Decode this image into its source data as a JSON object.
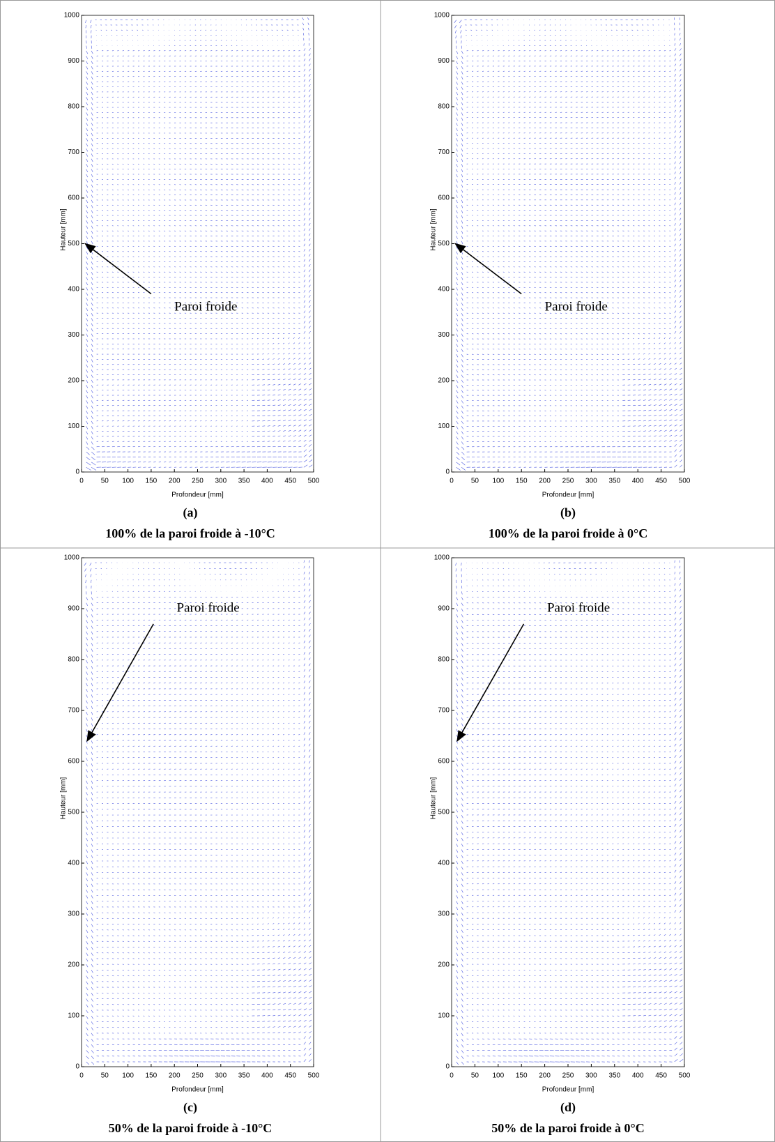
{
  "chart_data": [
    {
      "type": "quiver",
      "label": "(a)",
      "caption": "100% de la paroi froide à -10°C",
      "annotation": "Paroi froide",
      "xlabel": "Profondeur [mm]",
      "ylabel": "Hauteur [mm]",
      "xlim": [
        0,
        500
      ],
      "ylim": [
        0,
        1000
      ],
      "xticks": [
        0,
        50,
        100,
        150,
        200,
        250,
        300,
        350,
        400,
        450,
        500
      ],
      "yticks": [
        0,
        100,
        200,
        300,
        400,
        500,
        600,
        700,
        800,
        900,
        1000
      ],
      "color": "#1f2fd8"
    },
    {
      "type": "quiver",
      "label": "(b)",
      "caption": "100% de la paroi froide à 0°C",
      "annotation": "Paroi froide",
      "xlabel": "Profondeur [mm]",
      "ylabel": "Hauteur [mm]",
      "xlim": [
        0,
        500
      ],
      "ylim": [
        0,
        1000
      ],
      "xticks": [
        0,
        50,
        100,
        150,
        200,
        250,
        300,
        350,
        400,
        450,
        500
      ],
      "yticks": [
        0,
        100,
        200,
        300,
        400,
        500,
        600,
        700,
        800,
        900,
        1000
      ],
      "color": "#1f2fd8"
    },
    {
      "type": "quiver",
      "label": "(c)",
      "caption": "50% de la paroi froide à -10°C",
      "annotation": "Paroi froide",
      "xlabel": "Profondeur [mm]",
      "ylabel": "Hauteur [mm]",
      "xlim": [
        0,
        500
      ],
      "ylim": [
        0,
        1000
      ],
      "xticks": [
        0,
        50,
        100,
        150,
        200,
        250,
        300,
        350,
        400,
        450,
        500
      ],
      "yticks": [
        0,
        100,
        200,
        300,
        400,
        500,
        600,
        700,
        800,
        900,
        1000
      ],
      "color": "#1f2fd8"
    },
    {
      "type": "quiver",
      "label": "(d)",
      "caption": "50% de la paroi froide à 0°C",
      "annotation": "Paroi froide",
      "xlabel": "Profondeur [mm]",
      "ylabel": "Hauteur [mm]",
      "xlim": [
        0,
        500
      ],
      "ylim": [
        0,
        1000
      ],
      "xticks": [
        0,
        50,
        100,
        150,
        200,
        250,
        300,
        350,
        400,
        450,
        500
      ],
      "yticks": [
        0,
        100,
        200,
        300,
        400,
        500,
        600,
        700,
        800,
        900,
        1000
      ],
      "color": "#1f2fd8"
    }
  ]
}
